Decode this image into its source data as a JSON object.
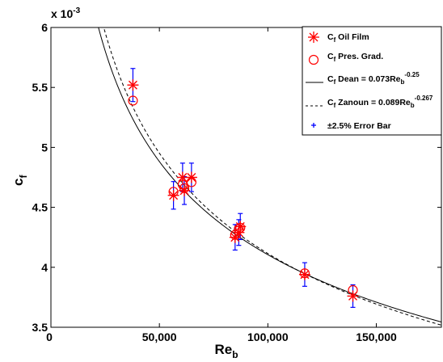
{
  "chart_data": {
    "type": "scatter",
    "xlabel_main": "Re",
    "xlabel_sub": "b",
    "ylabel_main": "c",
    "ylabel_sub": "f",
    "y_multiplier_base": "x 10",
    "y_multiplier_exp": "-3",
    "xlim": [
      0,
      180000
    ],
    "ylim": [
      3.5,
      6.0
    ],
    "x_ticks": [
      0,
      50000,
      100000,
      150000
    ],
    "x_tick_labels": [
      "0",
      "50,000",
      "100,000",
      "150,000"
    ],
    "y_ticks": [
      3.5,
      4,
      4.5,
      5,
      5.5,
      6
    ],
    "y_tick_labels": [
      "3.5",
      "4",
      "4.5",
      "5",
      "5.5",
      "6"
    ],
    "grid": false,
    "legend_position": "top-right",
    "series": [
      {
        "name_main": "C",
        "name_sub": "f",
        "name_rest": " Oil Film",
        "marker": "asterisk",
        "color": "#ff0000",
        "x": [
          37800,
          56500,
          60700,
          61500,
          64800,
          84900,
          86600,
          87300,
          117000,
          139200
        ],
        "y": [
          5.52,
          4.6,
          4.75,
          4.64,
          4.75,
          4.25,
          4.29,
          4.34,
          3.94,
          3.76
        ]
      },
      {
        "name_main": "C",
        "name_sub": "f",
        "name_rest": " Pres. Grad.",
        "marker": "circle",
        "color": "#ff0000",
        "x": [
          37800,
          56500,
          60700,
          61500,
          64800,
          84900,
          86600,
          87300,
          117000,
          139200
        ],
        "y": [
          5.39,
          4.63,
          4.69,
          4.66,
          4.71,
          4.27,
          4.32,
          4.33,
          3.95,
          3.81
        ]
      },
      {
        "name_main": "C",
        "name_sub": "f",
        "name_rest": " Dean = 0.073Re",
        "name_sub2": "b",
        "name_sup": "-0.25",
        "type": "line",
        "style": "solid",
        "color": "#000000",
        "coef": 0.073,
        "exp": -0.25
      },
      {
        "name_main": "C",
        "name_sub": "f",
        "name_rest": " Zanoun = 0.089Re",
        "name_sub2": "b",
        "name_sup": "-0.267",
        "type": "line",
        "style": "dashed",
        "color": "#000000",
        "coef": 0.089,
        "exp": -0.267
      },
      {
        "name_main": "±2.5% Error Bar",
        "type": "errorbar",
        "color": "#0000ff",
        "relative_error": 0.025
      }
    ]
  }
}
